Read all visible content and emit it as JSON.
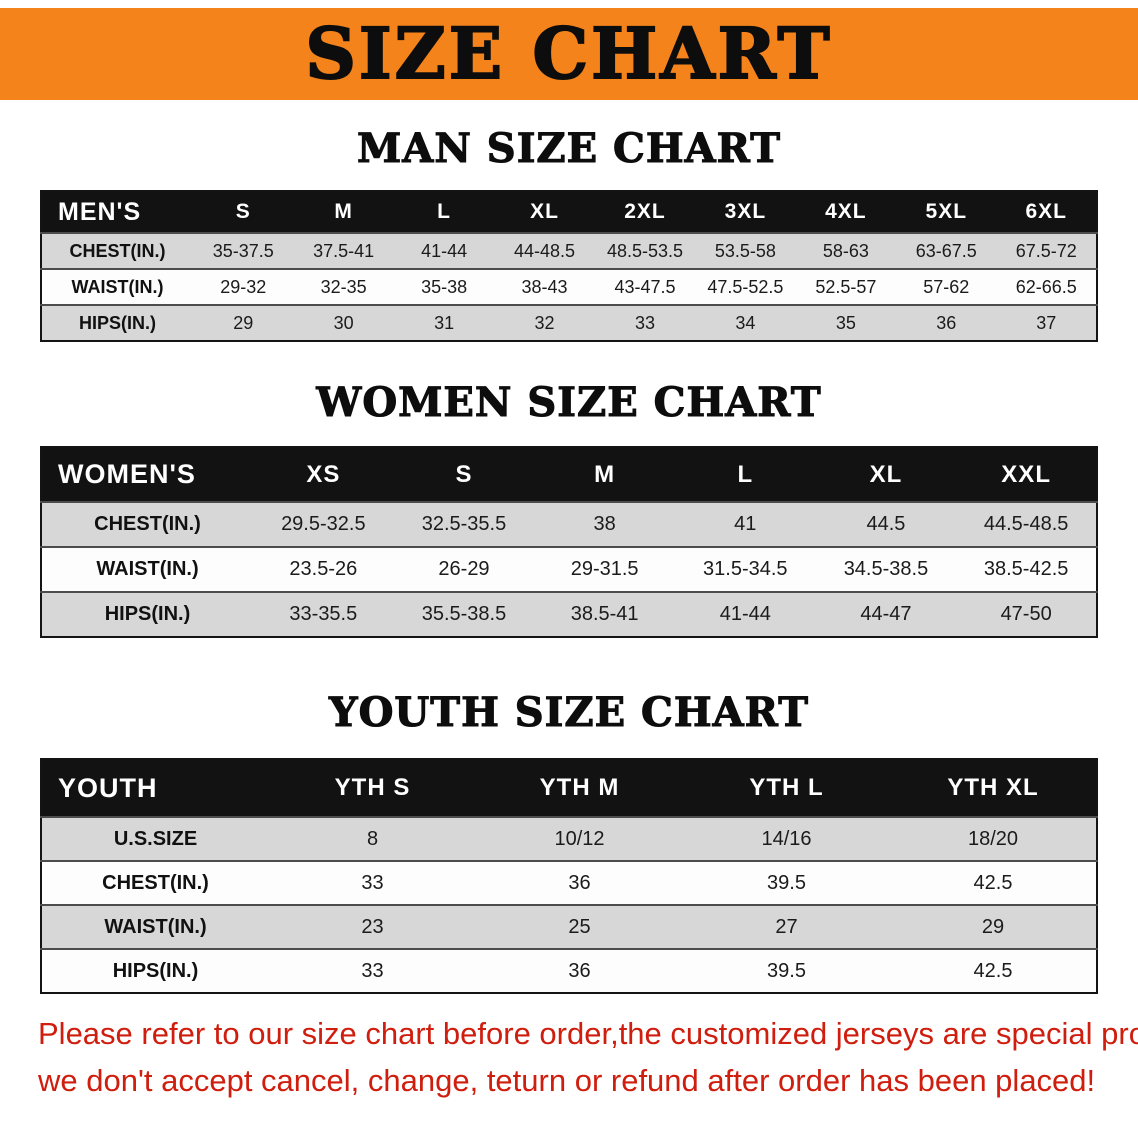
{
  "banner": {
    "title": "SIZE CHART"
  },
  "sections": [
    {
      "heading": "MAN SIZE CHART",
      "table": {
        "header": [
          "MEN'S",
          "S",
          "M",
          "L",
          "XL",
          "2XL",
          "3XL",
          "4XL",
          "5XL",
          "6XL"
        ],
        "rows": [
          [
            "CHEST(IN.)",
            "35-37.5",
            "37.5-41",
            "41-44",
            "44-48.5",
            "48.5-53.5",
            "53.5-58",
            "58-63",
            "63-67.5",
            "67.5-72"
          ],
          [
            "WAIST(IN.)",
            "29-32",
            "32-35",
            "35-38",
            "38-43",
            "43-47.5",
            "47.5-52.5",
            "52.5-57",
            "57-62",
            "62-66.5"
          ],
          [
            "HIPS(IN.)",
            "29",
            "30",
            "31",
            "32",
            "33",
            "34",
            "35",
            "36",
            "37"
          ]
        ]
      }
    },
    {
      "heading": "WOMEN SIZE CHART",
      "table": {
        "header": [
          "WOMEN'S",
          "XS",
          "S",
          "M",
          "L",
          "XL",
          "XXL"
        ],
        "rows": [
          [
            "CHEST(IN.)",
            "29.5-32.5",
            "32.5-35.5",
            "38",
            "41",
            "44.5",
            "44.5-48.5"
          ],
          [
            "WAIST(IN.)",
            "23.5-26",
            "26-29",
            "29-31.5",
            "31.5-34.5",
            "34.5-38.5",
            "38.5-42.5"
          ],
          [
            "HIPS(IN.)",
            "33-35.5",
            "35.5-38.5",
            "38.5-41",
            "41-44",
            "44-47",
            "47-50"
          ]
        ]
      }
    },
    {
      "heading": "YOUTH SIZE CHART",
      "table": {
        "header": [
          "YOUTH",
          "YTH S",
          "YTH M",
          "YTH L",
          "YTH XL"
        ],
        "rows": [
          [
            "U.S.SIZE",
            "8",
            "10/12",
            "14/16",
            "18/20"
          ],
          [
            "CHEST(IN.)",
            "33",
            "36",
            "39.5",
            "42.5"
          ],
          [
            "WAIST(IN.)",
            "23",
            "25",
            "27",
            "29"
          ],
          [
            "HIPS(IN.)",
            "33",
            "36",
            "39.5",
            "42.5"
          ]
        ]
      }
    }
  ],
  "disclaimer": {
    "line1": "Please refer to our size chart before order,the customized jerseys are special products,",
    "line2": "we don't accept cancel, change, teturn or refund after order has been placed!"
  },
  "colors": {
    "banner_orange": "#f5831c",
    "table_header_black": "#121212",
    "row_shaded": "#d7d7d7",
    "row_plain": "#fdfdfd",
    "note_red": "#cf1d0e"
  }
}
